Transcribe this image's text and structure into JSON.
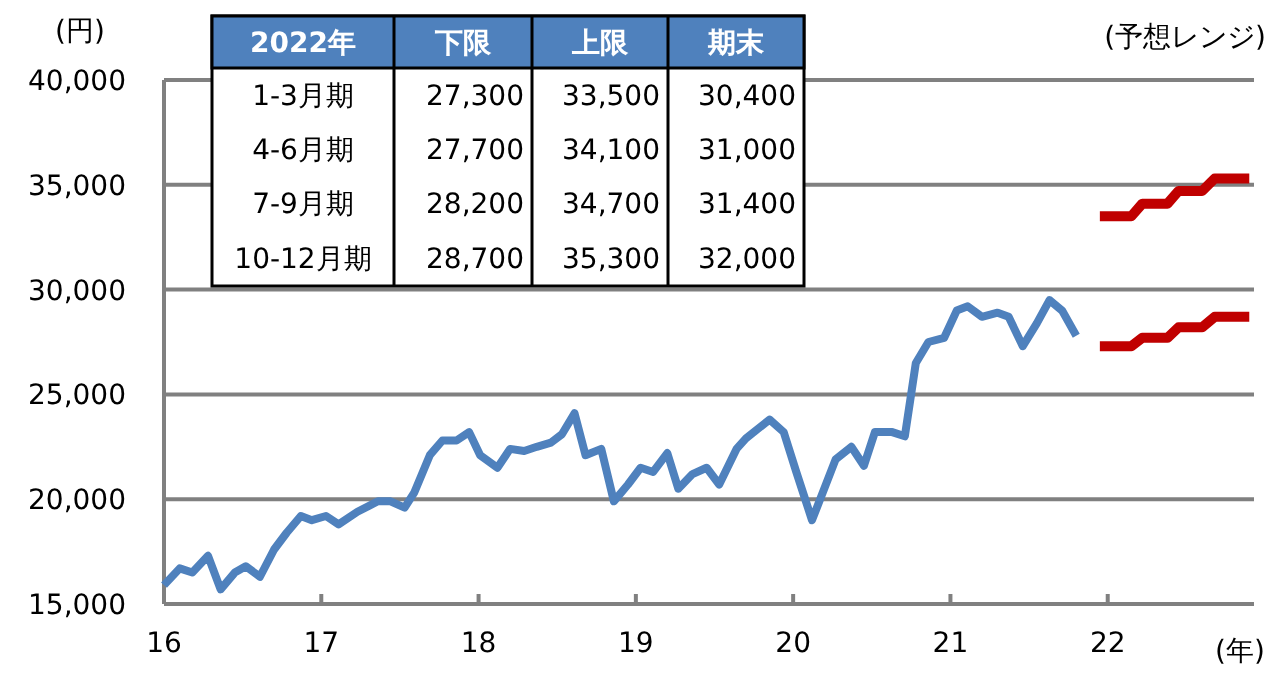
{
  "chart_data": {
    "type": "line",
    "ylabel": "(円)",
    "xlabel": "(年)",
    "series": [
      {
        "color": "#4f81bd",
        "x": [
          16.0,
          16.1,
          16.18,
          16.28,
          16.36,
          16.45,
          16.52,
          16.61,
          16.7,
          16.78,
          16.87,
          16.94,
          17.03,
          17.11,
          17.23,
          17.36,
          17.44,
          17.53,
          17.59,
          17.69,
          17.77,
          17.86,
          17.94,
          18.01,
          18.12,
          18.2,
          18.29,
          18.37,
          18.46,
          18.53,
          18.61,
          18.68,
          18.78,
          18.86,
          18.95,
          19.03,
          19.11,
          19.2,
          19.27,
          19.36,
          19.45,
          19.53,
          19.64,
          19.7,
          19.85,
          19.94,
          20.02,
          20.12,
          20.27,
          20.37,
          20.45,
          20.52,
          20.63,
          20.71,
          20.78,
          20.86,
          20.96,
          21.04,
          21.11,
          21.2,
          21.3,
          21.37,
          21.46,
          21.55,
          21.63,
          21.71,
          21.8
        ],
        "values": [
          15900,
          16700,
          16500,
          17300,
          15700,
          16500,
          16800,
          16300,
          17600,
          18400,
          19200,
          19000,
          19200,
          18800,
          19400,
          19900,
          19900,
          19600,
          20300,
          22100,
          22800,
          22800,
          23200,
          22100,
          21500,
          22400,
          22300,
          22500,
          22700,
          23100,
          24100,
          22100,
          22400,
          19900,
          20700,
          21500,
          21300,
          22200,
          20500,
          21200,
          21500,
          20700,
          22400,
          22900,
          23800,
          23200,
          21300,
          19000,
          21900,
          22500,
          21600,
          23200,
          23200,
          23000,
          26500,
          27500,
          27700,
          29000,
          29200,
          28700,
          28900,
          28700,
          27300,
          28400,
          29500,
          29000,
          27800
        ]
      },
      {
        "color": "#c00000",
        "x": [
          21.95,
          22.15,
          22.22,
          22.38,
          22.45,
          22.6,
          22.68,
          22.9
        ],
        "values": [
          27300,
          27300,
          27700,
          27700,
          28200,
          28200,
          28700,
          28700
        ]
      },
      {
        "color": "#c00000",
        "x": [
          21.95,
          22.15,
          22.22,
          22.38,
          22.45,
          22.6,
          22.68,
          22.9
        ],
        "values": [
          33500,
          33500,
          34100,
          34100,
          34700,
          34700,
          35300,
          35300
        ]
      }
    ],
    "xlim": [
      16,
      22.93
    ],
    "ylim": [
      15000,
      40000
    ],
    "xticks": [
      16,
      17,
      18,
      19,
      20,
      21,
      22
    ],
    "yticks": [
      {
        "value": 15000,
        "label": "15,000"
      },
      {
        "value": 20000,
        "label": "20,000"
      },
      {
        "value": 25000,
        "label": "25,000"
      },
      {
        "value": 30000,
        "label": "30,000"
      },
      {
        "value": 35000,
        "label": "35,000"
      },
      {
        "value": 40000,
        "label": "40,000"
      }
    ],
    "grid": "y",
    "annotations": [
      "2022年",
      "下限",
      "上限",
      "期末",
      "1-3月期",
      "27,300",
      "33,500",
      "30,400",
      "4-6月期",
      "27,700",
      "34,100",
      "31,000",
      "7-9月期",
      "28,200",
      "34,700",
      "31,400",
      "10-12月期",
      "28,700",
      "35,300",
      "32,000",
      "(予想レンジ)"
    ]
  }
}
